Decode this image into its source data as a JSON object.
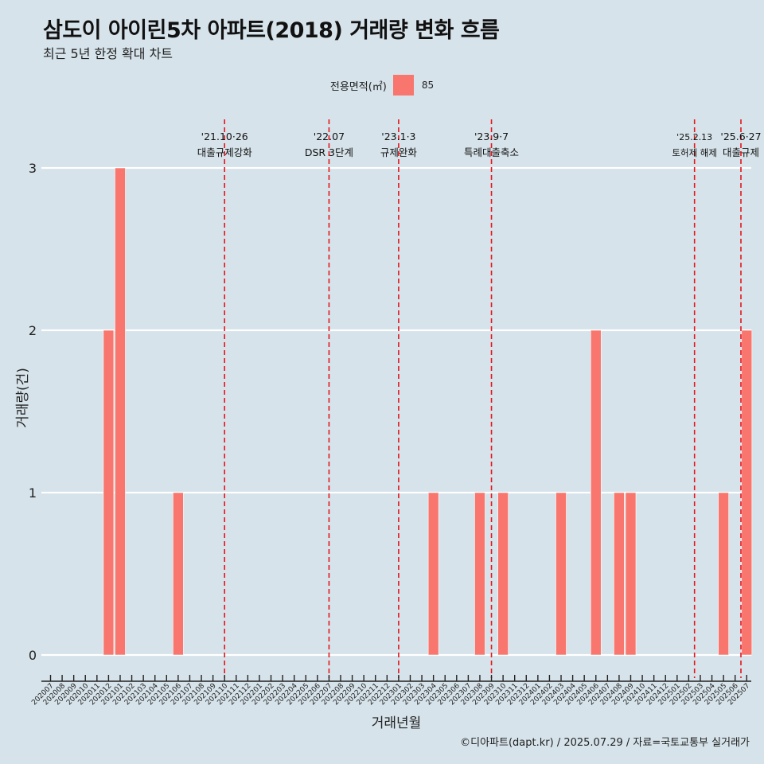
{
  "title": "삼도이 아이린5차 아파트(2018) 거래량 변화 흐름",
  "subtitle": "최근 5년 한정 확대 차트",
  "legend": {
    "title": "전용면적(㎡)",
    "label": "85",
    "color": "#f8766d"
  },
  "caption": "©디아파트(dapt.kr) / 2025.07.29 / 자료=국토교통부 실거래가",
  "chart_data": {
    "type": "bar",
    "xlabel": "거래년월",
    "ylabel": "거래량(건)",
    "ylim": [
      0,
      3
    ],
    "yticks": [
      0,
      1,
      2,
      3
    ],
    "grid": true,
    "legend_position": "top",
    "categories": [
      "202007",
      "202008",
      "202009",
      "202010",
      "202011",
      "202012",
      "202101",
      "202102",
      "202103",
      "202104",
      "202105",
      "202106",
      "202107",
      "202108",
      "202109",
      "202110",
      "202111",
      "202112",
      "202201",
      "202202",
      "202203",
      "202204",
      "202205",
      "202206",
      "202207",
      "202208",
      "202209",
      "202210",
      "202211",
      "202212",
      "202301",
      "202302",
      "202303",
      "202304",
      "202305",
      "202306",
      "202307",
      "202308",
      "202309",
      "202310",
      "202311",
      "202312",
      "202401",
      "202402",
      "202403",
      "202404",
      "202405",
      "202406",
      "202407",
      "202408",
      "202409",
      "202410",
      "202411",
      "202412",
      "202501",
      "202502",
      "202503",
      "202504",
      "202505",
      "202506",
      "202507"
    ],
    "series": [
      {
        "name": "85",
        "color": "#f8766d",
        "values": [
          0,
          0,
          0,
          0,
          0,
          2,
          3,
          0,
          0,
          0,
          0,
          1,
          0,
          0,
          0,
          0,
          0,
          0,
          0,
          0,
          0,
          0,
          0,
          0,
          0,
          0,
          0,
          0,
          0,
          0,
          0,
          0,
          0,
          1,
          0,
          0,
          0,
          1,
          0,
          1,
          0,
          0,
          0,
          0,
          1,
          0,
          0,
          2,
          0,
          1,
          1,
          0,
          0,
          0,
          0,
          0,
          0,
          0,
          1,
          0,
          2
        ]
      }
    ],
    "annotations": [
      {
        "x": 15.0,
        "date": "'21.10·26",
        "label": "대출규제강화"
      },
      {
        "x": 24.0,
        "date": "'22.07",
        "label": "DSR 3단계"
      },
      {
        "x": 30.0,
        "date": "'23.1·3",
        "label": "규제완화"
      },
      {
        "x": 38.0,
        "date": "'23.9·7",
        "label": "특례대출축소"
      },
      {
        "x": 55.5,
        "date": "'25.2.13",
        "label": "토허제 해제"
      },
      {
        "x": 59.5,
        "date": "'25.6·27",
        "label": "대출규제"
      }
    ]
  }
}
